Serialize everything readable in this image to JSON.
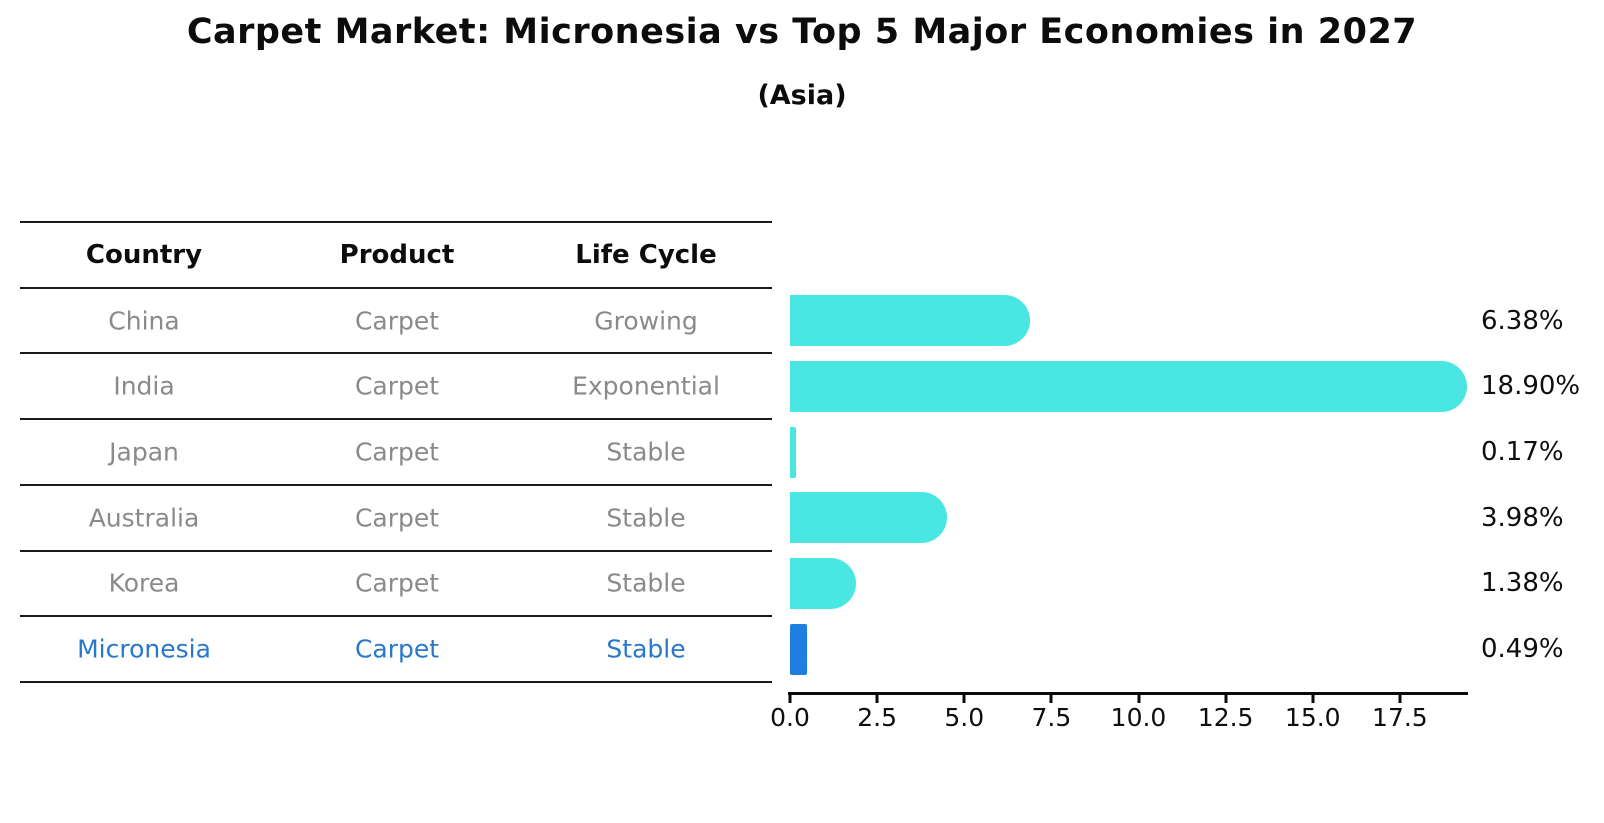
{
  "title": "Carpet Market: Micronesia vs Top 5 Major Economies in 2027",
  "subtitle": "(Asia)",
  "table": {
    "columns": [
      "Country",
      "Product",
      "Life Cycle"
    ],
    "rows": [
      {
        "country": "China",
        "product": "Carpet",
        "life_cycle": "Growing",
        "highlight": false
      },
      {
        "country": "India",
        "product": "Carpet",
        "life_cycle": "Exponential",
        "highlight": false
      },
      {
        "country": "Japan",
        "product": "Carpet",
        "life_cycle": "Stable",
        "highlight": false
      },
      {
        "country": "Australia",
        "product": "Carpet",
        "life_cycle": "Stable",
        "highlight": false
      },
      {
        "country": "Korea",
        "product": "Carpet",
        "life_cycle": "Stable",
        "highlight": false
      },
      {
        "country": "Micronesia",
        "product": "Carpet",
        "life_cycle": "Stable",
        "highlight": true
      }
    ]
  },
  "chart_data": {
    "type": "bar",
    "orientation": "horizontal",
    "title": "Carpet Market: Micronesia vs Top 5 Major Economies in 2027",
    "subtitle": "(Asia)",
    "categories": [
      "China",
      "India",
      "Japan",
      "Australia",
      "Korea",
      "Micronesia"
    ],
    "values": [
      6.38,
      18.9,
      0.17,
      3.98,
      1.38,
      0.49
    ],
    "value_labels": [
      "6.38%",
      "18.90%",
      "0.17%",
      "3.98%",
      "1.38%",
      "0.49%"
    ],
    "x_ticks": [
      0,
      2.5,
      5,
      7.5,
      10,
      12.5,
      15,
      17.5
    ],
    "x_tick_labels": [
      "0.0",
      "2.5",
      "5.0",
      "7.5",
      "10.0",
      "12.5",
      "15.0",
      "17.5"
    ],
    "xlim": [
      0,
      19.45
    ],
    "grid": false,
    "legend": null,
    "bar_color": "#4AE6E1",
    "highlight_bar_color": "#1E7FE0",
    "highlight_index": 5,
    "highlight_hatch": "dotted"
  },
  "colors": {
    "text_primary": "#0c0c0c",
    "table_text": "#8a8a8a",
    "highlight_text": "#2878CC",
    "line": "#1a1a1a"
  }
}
